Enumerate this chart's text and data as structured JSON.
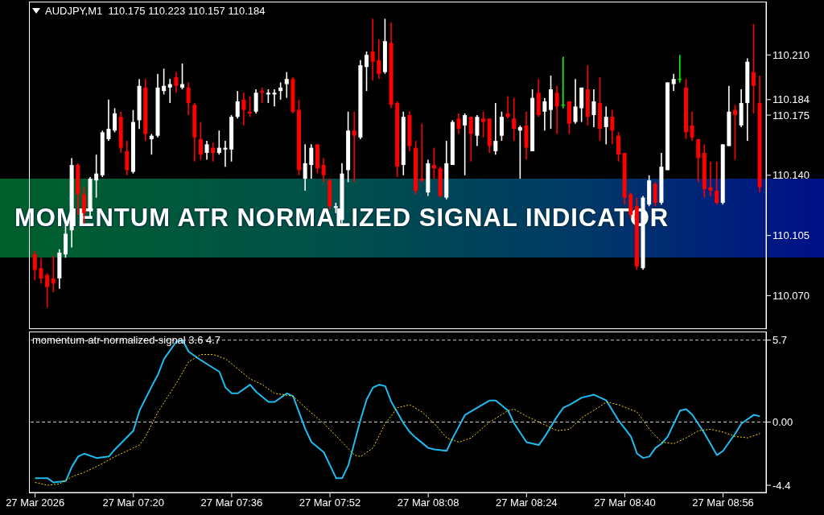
{
  "chart_data": [
    {
      "type": "candlestick",
      "title": "AUDJPY,M1  110.175 110.223 110.157 110.184",
      "annotations": [
        "MOMENTUM ATR NORMALIZED SIGNAL INDICATOR"
      ],
      "tick_labels": "y",
      "xlim": [
        "2026-03-27T07:03",
        "2026-03-27T09:03"
      ],
      "ylim": [
        110.051,
        110.241
      ],
      "yticks": [
        {
          "value": 110.07,
          "label": "110.070"
        },
        {
          "value": 110.105,
          "label": "110.105"
        },
        {
          "value": 110.14,
          "label": "110.140"
        },
        {
          "value": 110.175,
          "label": "110.175"
        },
        {
          "value": 110.184,
          "label": "110.184"
        },
        {
          "value": 110.21,
          "label": "110.210"
        }
      ],
      "x": [
        "2026-03-27T07:04",
        "2026-03-27T07:05",
        "2026-03-27T07:06",
        "2026-03-27T07:07",
        "2026-03-27T07:08",
        "2026-03-27T07:09",
        "2026-03-27T07:10",
        "2026-03-27T07:11",
        "2026-03-27T07:12",
        "2026-03-27T07:13",
        "2026-03-27T07:14",
        "2026-03-27T07:15",
        "2026-03-27T07:16",
        "2026-03-27T07:17",
        "2026-03-27T07:18",
        "2026-03-27T07:19",
        "2026-03-27T07:20",
        "2026-03-27T07:21",
        "2026-03-27T07:22",
        "2026-03-27T07:23",
        "2026-03-27T07:24",
        "2026-03-27T07:25",
        "2026-03-27T07:26",
        "2026-03-27T07:27",
        "2026-03-27T07:28",
        "2026-03-27T07:29",
        "2026-03-27T07:30",
        "2026-03-27T07:31",
        "2026-03-27T07:32",
        "2026-03-27T07:33",
        "2026-03-27T07:34",
        "2026-03-27T07:35",
        "2026-03-27T07:36",
        "2026-03-27T07:37",
        "2026-03-27T07:38",
        "2026-03-27T07:39",
        "2026-03-27T07:40",
        "2026-03-27T07:41",
        "2026-03-27T07:42",
        "2026-03-27T07:43",
        "2026-03-27T07:44",
        "2026-03-27T07:45",
        "2026-03-27T07:46",
        "2026-03-27T07:47",
        "2026-03-27T07:48",
        "2026-03-27T07:49",
        "2026-03-27T07:50",
        "2026-03-27T07:51",
        "2026-03-27T07:52",
        "2026-03-27T07:53",
        "2026-03-27T07:54",
        "2026-03-27T07:55",
        "2026-03-27T07:56",
        "2026-03-27T07:57",
        "2026-03-27T07:58",
        "2026-03-27T07:59",
        "2026-03-27T08:00",
        "2026-03-27T08:01",
        "2026-03-27T08:02",
        "2026-03-27T08:03",
        "2026-03-27T08:04",
        "2026-03-27T08:05",
        "2026-03-27T08:06",
        "2026-03-27T08:07",
        "2026-03-27T08:08",
        "2026-03-27T08:09",
        "2026-03-27T08:10",
        "2026-03-27T08:11",
        "2026-03-27T08:12",
        "2026-03-27T08:13",
        "2026-03-27T08:14",
        "2026-03-27T08:15",
        "2026-03-27T08:16",
        "2026-03-27T08:17",
        "2026-03-27T08:18",
        "2026-03-27T08:19",
        "2026-03-27T08:20",
        "2026-03-27T08:21",
        "2026-03-27T08:22",
        "2026-03-27T08:23",
        "2026-03-27T08:24",
        "2026-03-27T08:25",
        "2026-03-27T08:26",
        "2026-03-27T08:27",
        "2026-03-27T08:28",
        "2026-03-27T08:29",
        "2026-03-27T08:30",
        "2026-03-27T08:31",
        "2026-03-27T08:32",
        "2026-03-27T08:33",
        "2026-03-27T08:34",
        "2026-03-27T08:35",
        "2026-03-27T08:36",
        "2026-03-27T08:37",
        "2026-03-27T08:38",
        "2026-03-27T08:39",
        "2026-03-27T08:40",
        "2026-03-27T08:41",
        "2026-03-27T08:42",
        "2026-03-27T08:43",
        "2026-03-27T08:44",
        "2026-03-27T08:45",
        "2026-03-27T08:46",
        "2026-03-27T08:47",
        "2026-03-27T08:48",
        "2026-03-27T08:49",
        "2026-03-27T08:50",
        "2026-03-27T08:51",
        "2026-03-27T08:52",
        "2026-03-27T08:53",
        "2026-03-27T08:54",
        "2026-03-27T08:55",
        "2026-03-27T08:56",
        "2026-03-27T08:57",
        "2026-03-27T08:58",
        "2026-03-27T08:59",
        "2026-03-27T09:00",
        "2026-03-27T09:01",
        "2026-03-27T09:02"
      ],
      "ohlc": [
        [
          110.094,
          110.096,
          110.079,
          110.085
        ],
        [
          110.086,
          110.092,
          110.077,
          110.08
        ],
        [
          110.082,
          110.083,
          110.063,
          110.075
        ],
        [
          110.08,
          110.093,
          110.072,
          110.077
        ],
        [
          110.08,
          110.097,
          110.074,
          110.095
        ],
        [
          110.094,
          110.111,
          110.092,
          110.106
        ],
        [
          110.108,
          110.15,
          110.098,
          110.146
        ],
        [
          110.146,
          110.147,
          110.117,
          110.129
        ],
        [
          110.129,
          110.133,
          110.112,
          110.118
        ],
        [
          110.119,
          110.139,
          110.116,
          110.138
        ],
        [
          110.137,
          110.152,
          110.127,
          110.141
        ],
        [
          110.14,
          110.166,
          110.139,
          110.165
        ],
        [
          110.161,
          110.184,
          110.16,
          110.167
        ],
        [
          110.166,
          110.179,
          110.165,
          110.176
        ],
        [
          110.174,
          110.177,
          110.153,
          110.156
        ],
        [
          110.154,
          110.16,
          110.14,
          110.143
        ],
        [
          110.142,
          110.178,
          110.141,
          110.171
        ],
        [
          110.172,
          110.196,
          110.167,
          110.192
        ],
        [
          110.191,
          110.196,
          110.16,
          110.164
        ],
        [
          110.161,
          110.164,
          110.152,
          110.163
        ],
        [
          110.163,
          110.199,
          110.162,
          110.191
        ],
        [
          110.189,
          110.202,
          110.187,
          110.192
        ],
        [
          110.191,
          110.196,
          110.182,
          110.193
        ],
        [
          110.197,
          110.2,
          110.188,
          110.192
        ],
        [
          110.191,
          110.205,
          110.19,
          110.193
        ],
        [
          110.191,
          110.194,
          110.175,
          110.182
        ],
        [
          110.181,
          110.182,
          110.148,
          110.162
        ],
        [
          110.161,
          110.171,
          110.149,
          110.152
        ],
        [
          110.153,
          110.16,
          110.149,
          110.158
        ],
        [
          110.156,
          110.159,
          110.148,
          110.153
        ],
        [
          110.153,
          110.166,
          110.152,
          110.156
        ],
        [
          110.155,
          110.16,
          110.145,
          110.156
        ],
        [
          110.155,
          110.175,
          110.148,
          110.174
        ],
        [
          110.174,
          110.189,
          110.173,
          110.183
        ],
        [
          110.184,
          110.188,
          110.169,
          110.178
        ],
        [
          110.177,
          110.186,
          110.174,
          110.176
        ],
        [
          110.177,
          110.19,
          110.176,
          110.188
        ],
        [
          110.189,
          110.191,
          110.182,
          110.188
        ],
        [
          110.187,
          110.19,
          110.182,
          110.188
        ],
        [
          110.187,
          110.19,
          110.18,
          110.188
        ],
        [
          110.189,
          110.194,
          110.184,
          110.191
        ],
        [
          110.193,
          110.2,
          110.185,
          110.196
        ],
        [
          110.196,
          110.197,
          110.176,
          110.177
        ],
        [
          110.178,
          110.184,
          110.14,
          110.143
        ],
        [
          110.138,
          110.158,
          110.131,
          110.147
        ],
        [
          110.146,
          110.158,
          110.138,
          110.156
        ],
        [
          110.158,
          110.158,
          110.141,
          110.144
        ],
        [
          110.146,
          110.15,
          110.136,
          110.14
        ],
        [
          110.137,
          110.138,
          110.12,
          110.122
        ],
        [
          110.121,
          110.124,
          110.118,
          110.122
        ],
        [
          110.114,
          110.147,
          110.112,
          110.141
        ],
        [
          110.143,
          110.177,
          110.136,
          110.166
        ],
        [
          110.166,
          110.177,
          110.136,
          110.163
        ],
        [
          110.162,
          110.207,
          110.161,
          110.204
        ],
        [
          110.203,
          110.212,
          110.189,
          110.21
        ],
        [
          110.212,
          110.231,
          110.195,
          110.206
        ],
        [
          110.207,
          110.219,
          110.196,
          110.199
        ],
        [
          110.2,
          110.231,
          110.199,
          110.218
        ],
        [
          110.217,
          110.229,
          110.179,
          110.181
        ],
        [
          110.182,
          110.183,
          110.139,
          110.145
        ],
        [
          110.146,
          110.177,
          110.14,
          110.174
        ],
        [
          110.175,
          110.177,
          110.154,
          110.157
        ],
        [
          110.156,
          110.16,
          110.129,
          110.131
        ],
        [
          110.138,
          110.17,
          110.136,
          110.137
        ],
        [
          110.13,
          110.149,
          110.128,
          110.147
        ],
        [
          110.146,
          110.156,
          110.138,
          110.144
        ],
        [
          110.144,
          110.145,
          110.127,
          110.128
        ],
        [
          110.127,
          110.16,
          110.126,
          110.147
        ],
        [
          110.146,
          110.172,
          110.146,
          110.171
        ],
        [
          110.173,
          110.176,
          110.164,
          110.167
        ],
        [
          110.169,
          110.176,
          110.14,
          110.175
        ],
        [
          110.174,
          110.174,
          110.148,
          110.164
        ],
        [
          110.163,
          110.175,
          110.157,
          110.174
        ],
        [
          110.173,
          110.177,
          110.162,
          110.171
        ],
        [
          110.173,
          110.173,
          110.153,
          110.157
        ],
        [
          110.154,
          110.182,
          110.152,
          110.16
        ],
        [
          110.163,
          110.177,
          110.16,
          110.174
        ],
        [
          110.176,
          110.186,
          110.173,
          110.174
        ],
        [
          110.173,
          110.185,
          110.16,
          110.167
        ],
        [
          110.166,
          110.169,
          110.138,
          110.168
        ],
        [
          110.169,
          110.177,
          110.149,
          110.156
        ],
        [
          110.154,
          110.19,
          110.154,
          110.185
        ],
        [
          110.188,
          110.196,
          110.174,
          110.175
        ],
        [
          110.177,
          110.185,
          110.166,
          110.183
        ],
        [
          110.178,
          110.198,
          110.167,
          110.19
        ],
        [
          110.188,
          110.192,
          110.164,
          110.18
        ],
        [
          110.181,
          110.209,
          110.179,
          110.181
        ],
        [
          110.183,
          110.183,
          110.164,
          110.17
        ],
        [
          110.171,
          110.196,
          110.17,
          110.18
        ],
        [
          110.179,
          110.191,
          110.171,
          110.191
        ],
        [
          110.19,
          110.204,
          110.169,
          110.174
        ],
        [
          110.175,
          110.19,
          110.168,
          110.183
        ],
        [
          110.182,
          110.197,
          110.16,
          110.167
        ],
        [
          110.168,
          110.18,
          110.158,
          110.174
        ],
        [
          110.174,
          110.178,
          110.158,
          110.166
        ],
        [
          110.163,
          110.165,
          110.148,
          110.152
        ],
        [
          110.153,
          110.153,
          110.123,
          110.127
        ],
        [
          110.129,
          110.13,
          110.115,
          110.117
        ],
        [
          110.122,
          110.127,
          110.085,
          110.087
        ],
        [
          110.086,
          110.128,
          110.085,
          110.127
        ],
        [
          110.123,
          110.14,
          110.122,
          110.137
        ],
        [
          110.135,
          110.136,
          110.122,
          110.124
        ],
        [
          110.124,
          110.153,
          110.123,
          110.145
        ],
        [
          110.143,
          110.194,
          110.143,
          110.194
        ],
        [
          110.193,
          110.199,
          110.189,
          110.196
        ],
        [
          110.196,
          110.21,
          110.194,
          110.196
        ],
        [
          110.191,
          110.196,
          110.161,
          110.165
        ],
        [
          110.169,
          110.177,
          110.16,
          110.162
        ],
        [
          110.161,
          110.161,
          110.136,
          110.15
        ],
        [
          110.153,
          110.158,
          110.127,
          110.132
        ],
        [
          110.133,
          110.148,
          110.128,
          110.131
        ],
        [
          110.131,
          110.148,
          110.123,
          110.124
        ],
        [
          110.124,
          110.158,
          110.123,
          110.158
        ],
        [
          110.157,
          110.192,
          110.157,
          110.177
        ],
        [
          110.178,
          110.181,
          110.149,
          110.175
        ],
        [
          110.169,
          110.19,
          110.168,
          110.182
        ],
        [
          110.182,
          110.208,
          110.16,
          110.206
        ],
        [
          110.2,
          110.228,
          110.176,
          110.192
        ],
        [
          110.182,
          110.198,
          110.13,
          110.133
        ]
      ],
      "colors": [
        "#ff0000",
        "#ff0000",
        "#ff0000",
        "#ff0000",
        "#ffffff",
        "#ffffff",
        "#ffffff",
        "#ff0000",
        "#ff0000",
        "#ffffff",
        "#ffffff",
        "#ffffff",
        "#ffffff",
        "#ffffff",
        "#ff0000",
        "#ff0000",
        "#ffffff",
        "#ffffff",
        "#ff0000",
        "#ffffff",
        "#ffffff",
        "#ffffff",
        "#ffffff",
        "#ff0000",
        "#ffffff",
        "#ff0000",
        "#ff0000",
        "#ff0000",
        "#ffffff",
        "#ff0000",
        "#ffffff",
        "#ffffff",
        "#ffffff",
        "#ffffff",
        "#ff0000",
        "#ff0000",
        "#ffffff",
        "#ff0000",
        "#ffffff",
        "#ffffff",
        "#ffffff",
        "#ffffff",
        "#ff0000",
        "#ff0000",
        "#ffffff",
        "#ffffff",
        "#ff0000",
        "#ff0000",
        "#ff0000",
        "#ffffff",
        "#ffffff",
        "#ffffff",
        "#ff0000",
        "#ffffff",
        "#ffffff",
        "#ff0000",
        "#ff0000",
        "#ffffff",
        "#ff0000",
        "#ff0000",
        "#ffffff",
        "#ff0000",
        "#ff0000",
        "#ff0000",
        "#ffffff",
        "#ff0000",
        "#ff0000",
        "#ffffff",
        "#ffffff",
        "#ff0000",
        "#ffffff",
        "#ff0000",
        "#ffffff",
        "#ff0000",
        "#ff0000",
        "#ffffff",
        "#ffffff",
        "#ff0000",
        "#ff0000",
        "#ffffff",
        "#ff0000",
        "#ffffff",
        "#ff0000",
        "#ffffff",
        "#ffffff",
        "#ff0000",
        "#00ff00",
        "#ff0000",
        "#ffffff",
        "#ffffff",
        "#ff0000",
        "#ffffff",
        "#ff0000",
        "#ffffff",
        "#ff0000",
        "#ff0000",
        "#ff0000",
        "#ff0000",
        "#ff0000",
        "#ffffff",
        "#ffffff",
        "#ff0000",
        "#ffffff",
        "#ffffff",
        "#ffffff",
        "#00ff00",
        "#ff0000",
        "#ff0000",
        "#ff0000",
        "#ff0000",
        "#ff0000",
        "#ff0000",
        "#ffffff",
        "#ffffff",
        "#ff0000",
        "#ffffff",
        "#ffffff",
        "#ff0000",
        "#ff0000"
      ]
    },
    {
      "type": "line",
      "title": "momentum-atr-normalized-signal 3.6 4.7",
      "xlim": [
        "2026-03-27T07:03",
        "2026-03-27T09:03"
      ],
      "xticks": [
        {
          "value": "2026-03-27T07:04",
          "label": "27 Mar 2026"
        },
        {
          "value": "2026-03-27T07:20",
          "label": "27 Mar 07:20"
        },
        {
          "value": "2026-03-27T07:36",
          "label": "27 Mar 07:36"
        },
        {
          "value": "2026-03-27T07:52",
          "label": "27 Mar 07:52"
        },
        {
          "value": "2026-03-27T08:08",
          "label": "27 Mar 08:08"
        },
        {
          "value": "2026-03-27T08:24",
          "label": "27 Mar 08:24"
        },
        {
          "value": "2026-03-27T08:40",
          "label": "27 Mar 08:40"
        },
        {
          "value": "2026-03-27T08:56",
          "label": "27 Mar 08:56"
        }
      ],
      "ylim": [
        -4.9,
        6.3
      ],
      "yticks": [
        -4.4,
        {
          "value": 0,
          "label": "0.00"
        },
        5.7
      ],
      "ref_lines": [
        {
          "axis": "y",
          "value": 5.7,
          "color": "#c8c8c8",
          "line_style": "dashed"
        },
        {
          "axis": "y",
          "value": 0,
          "color": "#c8c8c8",
          "line_style": "dashed"
        }
      ],
      "series": [
        {
          "color": "#1ebcf0",
          "line_style": "solid",
          "x": [
            "2026-03-27T07:04",
            "2026-03-27T07:06",
            "2026-03-27T07:07",
            "2026-03-27T07:09",
            "2026-03-27T07:10",
            "2026-03-27T07:11",
            "2026-03-27T07:12",
            "2026-03-27T07:14",
            "2026-03-27T07:16",
            "2026-03-27T07:17",
            "2026-03-27T07:20",
            "2026-03-27T07:21",
            "2026-03-27T07:23",
            "2026-03-27T07:24",
            "2026-03-27T07:25",
            "2026-03-27T07:27",
            "2026-03-27T07:28",
            "2026-03-27T07:29",
            "2026-03-27T07:31",
            "2026-03-27T07:34",
            "2026-03-27T07:35",
            "2026-03-27T07:36",
            "2026-03-27T07:37",
            "2026-03-27T07:39",
            "2026-03-27T07:40",
            "2026-03-27T07:42",
            "2026-03-27T07:43",
            "2026-03-27T07:45",
            "2026-03-27T07:46",
            "2026-03-27T07:48",
            "2026-03-27T07:49",
            "2026-03-27T07:51",
            "2026-03-27T07:53",
            "2026-03-27T07:54",
            "2026-03-27T07:55",
            "2026-03-27T07:57",
            "2026-03-27T07:58",
            "2026-03-27T07:59",
            "2026-03-27T08:00",
            "2026-03-27T08:01",
            "2026-03-27T08:02",
            "2026-03-27T08:04",
            "2026-03-27T08:05",
            "2026-03-27T08:06",
            "2026-03-27T08:08",
            "2026-03-27T08:09",
            "2026-03-27T08:11",
            "2026-03-27T08:12",
            "2026-03-27T08:14",
            "2026-03-27T08:16",
            "2026-03-27T08:18",
            "2026-03-27T08:19",
            "2026-03-27T08:21",
            "2026-03-27T08:22",
            "2026-03-27T08:24",
            "2026-03-27T08:26",
            "2026-03-27T08:27",
            "2026-03-27T08:29",
            "2026-03-27T08:30",
            "2026-03-27T08:31",
            "2026-03-27T08:33",
            "2026-03-27T08:35",
            "2026-03-27T08:37",
            "2026-03-27T08:39",
            "2026-03-27T08:41",
            "2026-03-27T08:42",
            "2026-03-27T08:43",
            "2026-03-27T08:44",
            "2026-03-27T08:45",
            "2026-03-27T08:46",
            "2026-03-27T08:47",
            "2026-03-27T08:49",
            "2026-03-27T08:50",
            "2026-03-27T08:51",
            "2026-03-27T08:53",
            "2026-03-27T08:55",
            "2026-03-27T08:56",
            "2026-03-27T08:58",
            "2026-03-27T08:59",
            "2026-03-27T09:01",
            "2026-03-27T09:02"
          ],
          "values": [
            -3.9,
            -3.9,
            -4.2,
            -4.1,
            -3.1,
            -2.4,
            -2.2,
            -2.5,
            -2.4,
            -1.9,
            -0.6,
            0.8,
            2.5,
            3.3,
            4.4,
            5.6,
            5.7,
            4.9,
            4.3,
            3.5,
            2.4,
            2.0,
            2.0,
            2.6,
            2.1,
            1.4,
            1.4,
            2.0,
            1.8,
            -0.5,
            -1.4,
            -2.1,
            -3.9,
            -3.9,
            -3.0,
            0.2,
            1.6,
            2.4,
            2.6,
            2.5,
            1.4,
            -0.1,
            -0.7,
            -1.1,
            -1.8,
            -1.9,
            -2.0,
            -1.1,
            0.5,
            1.0,
            1.5,
            1.5,
            0.8,
            -0.1,
            -1.4,
            -1.6,
            -1.0,
            0.4,
            1.0,
            1.2,
            1.7,
            1.9,
            1.5,
            0.1,
            -1.0,
            -2.2,
            -2.5,
            -2.4,
            -1.8,
            -1.5,
            -1.0,
            0.8,
            0.9,
            0.5,
            -0.8,
            -2.3,
            -2.0,
            -0.8,
            -0.1,
            0.5,
            0.4
          ]
        },
        {
          "color": "#ffd700",
          "line_style": "dotted",
          "x": [
            "2026-03-27T07:04",
            "2026-03-27T07:06",
            "2026-03-27T07:08",
            "2026-03-27T07:10",
            "2026-03-27T07:12",
            "2026-03-27T07:14",
            "2026-03-27T07:17",
            "2026-03-27T07:21",
            "2026-03-27T07:22",
            "2026-03-27T07:24",
            "2026-03-27T07:27",
            "2026-03-27T07:29",
            "2026-03-27T07:31",
            "2026-03-27T07:33",
            "2026-03-27T07:35",
            "2026-03-27T07:37",
            "2026-03-27T07:39",
            "2026-03-27T07:41",
            "2026-03-27T07:43",
            "2026-03-27T07:46",
            "2026-03-27T07:48",
            "2026-03-27T07:51",
            "2026-03-27T07:54",
            "2026-03-27T07:56",
            "2026-03-27T07:57",
            "2026-03-27T07:59",
            "2026-03-27T08:01",
            "2026-03-27T08:03",
            "2026-03-27T08:05",
            "2026-03-27T08:07",
            "2026-03-27T08:09",
            "2026-03-27T08:11",
            "2026-03-27T08:13",
            "2026-03-27T08:15",
            "2026-03-27T08:18",
            "2026-03-27T08:21",
            "2026-03-27T08:22",
            "2026-03-27T08:24",
            "2026-03-27T08:27",
            "2026-03-27T08:29",
            "2026-03-27T08:31",
            "2026-03-27T08:33",
            "2026-03-27T08:36",
            "2026-03-27T08:37",
            "2026-03-27T08:39",
            "2026-03-27T08:42",
            "2026-03-27T08:44",
            "2026-03-27T08:46",
            "2026-03-27T08:48",
            "2026-03-27T08:50",
            "2026-03-27T08:52",
            "2026-03-27T08:54",
            "2026-03-27T08:56",
            "2026-03-27T08:58",
            "2026-03-27T09:00",
            "2026-03-27T09:02"
          ],
          "values": [
            -4.2,
            -4.4,
            -4.3,
            -3.8,
            -3.5,
            -3.1,
            -2.4,
            -1.6,
            -1.0,
            0.7,
            2.7,
            4.2,
            4.7,
            4.7,
            4.4,
            3.7,
            3.0,
            2.6,
            2.0,
            1.8,
            1.0,
            -0.1,
            -1.4,
            -2.3,
            -2.4,
            -1.8,
            -0.1,
            1.0,
            1.2,
            0.7,
            -0.1,
            -1.1,
            -1.4,
            -1.1,
            0.0,
            0.8,
            0.9,
            0.4,
            -0.2,
            -0.6,
            -0.5,
            0.3,
            1.1,
            1.4,
            1.2,
            0.7,
            -0.5,
            -1.4,
            -1.5,
            -1.1,
            -0.6,
            -0.5,
            -0.7,
            -1.0,
            -1.1,
            -0.8
          ]
        }
      ]
    }
  ]
}
